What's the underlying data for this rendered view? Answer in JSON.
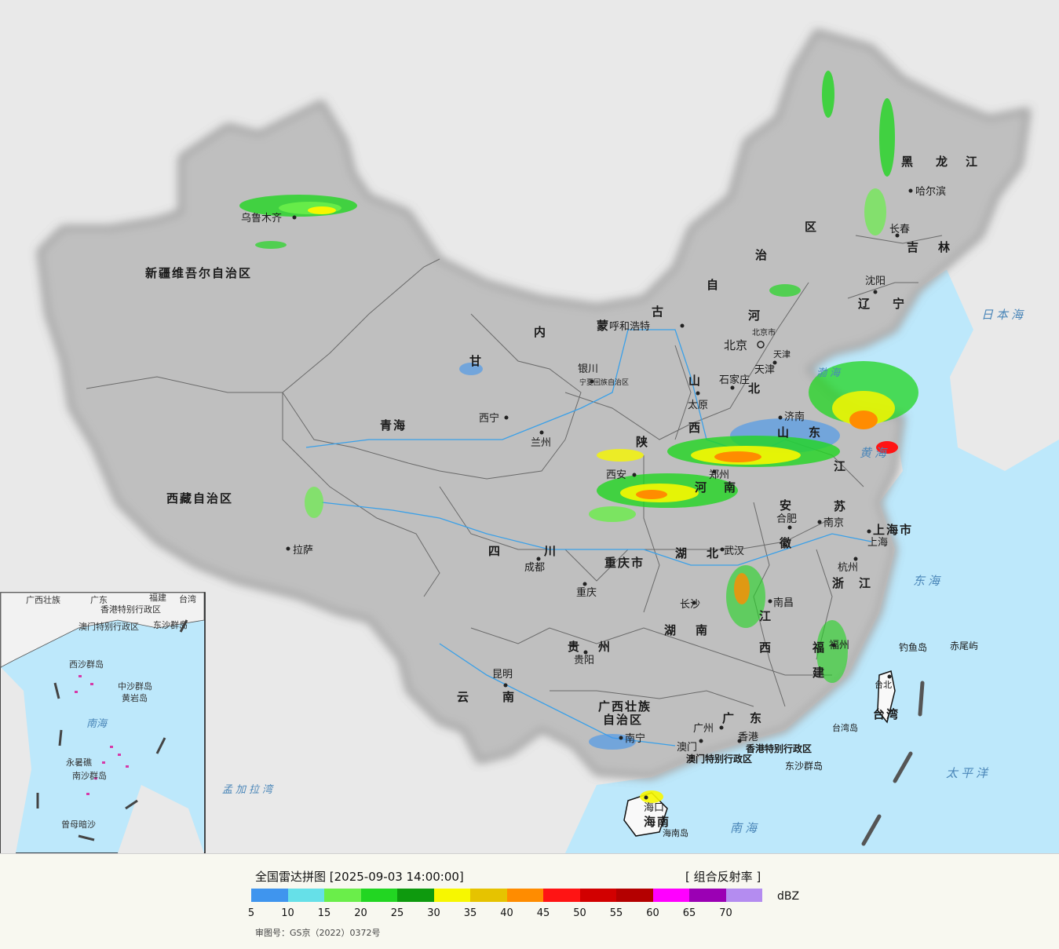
{
  "title": "全国雷达拼图 [2025-09-03 14:00:00]",
  "product": "[ 组合反射率 ]",
  "unit": "dBZ",
  "approval": "审图号：GS京（2022）0372号",
  "legend": {
    "colors": [
      "#3f95ee",
      "#66e0e8",
      "#6aee4a",
      "#22d622",
      "#0e9a0e",
      "#f7f700",
      "#e6c300",
      "#ff8c00",
      "#ff1414",
      "#d20000",
      "#b40000",
      "#ff00ff",
      "#9b00b4",
      "#b48cf0"
    ],
    "ticks": [
      "5",
      "10",
      "15",
      "20",
      "25",
      "30",
      "35",
      "40",
      "45",
      "50",
      "55",
      "60",
      "65",
      "70"
    ]
  },
  "provinces": [
    "新疆维吾尔自治区",
    "西藏自治区",
    "青海",
    "甘",
    "内",
    "蒙",
    "古",
    "自",
    "治",
    "区",
    "黑",
    "龙",
    "江",
    "吉",
    "林",
    "辽",
    "宁",
    "河",
    "北",
    "山",
    "西",
    "陕",
    "四",
    "川",
    "云",
    "南",
    "贵",
    "州",
    "广西壮族",
    "自治区",
    "广",
    "东",
    "湖",
    "北",
    "湖",
    "南",
    "江",
    "西",
    "福",
    "建",
    "浙",
    "江",
    "安",
    "徽",
    "江",
    "苏",
    "山",
    "东",
    "河",
    "南",
    "台湾",
    "海南",
    "重庆市",
    "上海市",
    "宁夏回族自治区",
    "天津",
    "北京市",
    "香港特别行政区",
    "澳门特别行政区"
  ],
  "cities": [
    "乌鲁木齐",
    "拉萨",
    "西宁",
    "兰州",
    "银川",
    "呼和浩特",
    "北京",
    "天津",
    "石家庄",
    "太原",
    "济南",
    "郑州",
    "西安",
    "成都",
    "重庆",
    "贵阳",
    "昆明",
    "南宁",
    "长沙",
    "武汉",
    "合肥",
    "南京",
    "上海",
    "杭州",
    "南昌",
    "福州",
    "台北",
    "台湾岛",
    "广州",
    "香港",
    "澳门",
    "海口",
    "海南岛",
    "哈尔滨",
    "长春",
    "沈阳",
    "钓鱼岛",
    "赤尾屿",
    "东沙群岛"
  ],
  "seas": [
    "日本海",
    "渤海",
    "黄海",
    "东海",
    "南海",
    "太平洋",
    "孟加拉湾"
  ],
  "inset": {
    "labels": [
      "广西壮族",
      "广东",
      "福建",
      "台湾",
      "香港特别行政区",
      "澳门特别行政区",
      "东沙群岛",
      "西沙群岛",
      "中沙群岛",
      "黄岩岛",
      "南海",
      "永暑礁",
      "南沙群岛",
      "曾母暗沙"
    ]
  }
}
